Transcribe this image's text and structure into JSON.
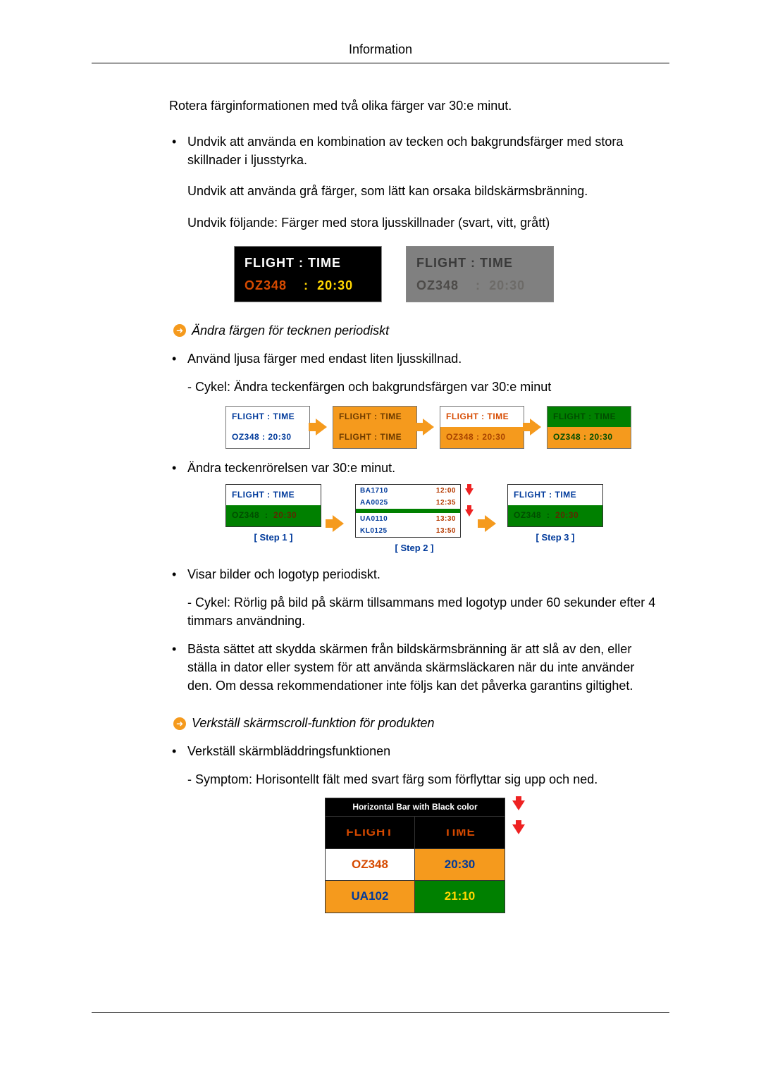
{
  "header": {
    "title": "Information"
  },
  "intro": "Rotera färginformationen med två olika färger var 30:e minut.",
  "b1": {
    "p1": "Undvik att använda en kombination av tecken och bakgrundsfärger med stora skillnader i ljusstyrka.",
    "p2": "Undvik att använda grå färger, som lätt kan orsaka bildskärmsbränning.",
    "p3": "Undvik följande: Färger med stora ljusskillnader (svart, vitt, grått)"
  },
  "fig1": {
    "left": {
      "bg": "#000000",
      "line1": "FLIGHT  :  TIME",
      "flight": "OZ348",
      "sep": ":",
      "time": "20:30"
    },
    "right": {
      "bg": "#808080",
      "line1": "FLIGHT  :  TIME",
      "flight": "OZ348",
      "sep": ":",
      "time": "20:30"
    }
  },
  "sec1": {
    "title": "Ändra färgen för tecknen periodiskt"
  },
  "b2": {
    "text": "Använd ljusa färger med endast liten ljusskillnad.",
    "sub": "- Cykel: Ändra teckenfärgen och bakgrundsfärgen var 30:e minut"
  },
  "fig2": {
    "cells": [
      {
        "r1_bg": "#ffffff",
        "r1_cls": "txt-blue",
        "r1": "FLIGHT : TIME",
        "r2_bg": "#ffffff",
        "r2_cls": "txt-blue",
        "r2": "OZ348  : 20:30"
      },
      {
        "r1_bg": "#f59a1d",
        "r1_cls": "txt-brown",
        "r1": "FLIGHT : TIME",
        "r2_bg": "#f59a1d",
        "r2_cls": "txt-brown",
        "r2": "FLIGHT : TIME"
      },
      {
        "r1_bg": "#ffffff",
        "r1_cls": "txt-orange",
        "r1": "FLIGHT : TIME",
        "r2_bg": "#f59a1d",
        "r2_cls": "txt-dkorange",
        "r2": "OZ348  : 20:30"
      },
      {
        "r1_bg": "#008000",
        "r1_cls": "txt-dkgreen",
        "r1": "FLIGHT : TIME",
        "r2_bg": "#f59a1d",
        "r2_cls": "txt-dkgreen",
        "r2": "OZ348  : 20:30"
      }
    ]
  },
  "b3": {
    "text": "Ändra teckenrörelsen var 30:e minut."
  },
  "fig3": {
    "step1": {
      "label": "[  Step 1  ]",
      "r1": "FLIGHT : TIME",
      "r2_f": "OZ348",
      "r2_t": "20:30"
    },
    "step2": {
      "label": "[  Step 2  ]",
      "rows": [
        {
          "g": false,
          "f": "BA1710",
          "t": "12:00"
        },
        {
          "g": false,
          "f": "AA0025",
          "t": "12:35"
        },
        {
          "g": true,
          "f": "",
          "t": ""
        },
        {
          "g": false,
          "f": "UA0110",
          "t": "13:30"
        },
        {
          "g": false,
          "f": "KL0125",
          "t": "13:50"
        }
      ]
    },
    "step3": {
      "label": "[  Step 3  ]",
      "r1": "FLIGHT : TIME",
      "r2_f": "OZ348",
      "r2_t": "20:30"
    }
  },
  "b4": {
    "text": "Visar bilder och logotyp periodiskt.",
    "sub": "- Cykel: Rörlig på bild på skärm tillsammans med logotyp under 60 sekunder efter 4 timmars användning."
  },
  "b5": {
    "text": "Bästa sättet att skydda skärmen från bildskärmsbränning är att slå av den, eller ställa in dator eller system för att använda skärmsläckaren när du inte använder den. Om dessa rekommendationer inte följs kan det påverka garantins giltighet."
  },
  "sec2": {
    "title": "Verkställ skärmscroll-funktion för produkten"
  },
  "b6": {
    "text": "Verkställ skärmbläddringsfunktionen",
    "sub": "- Symptom: Horisontellt fält med svart färg som förflyttar sig upp och ned."
  },
  "fig4": {
    "caption": "Horizontal Bar with Black color",
    "r1": {
      "c1": "FLIGHT",
      "c2": "TIME"
    },
    "r2": {
      "c1": "OZ348",
      "c2": "20:30"
    },
    "r3": {
      "c1": "UA102",
      "c2": "21:10"
    }
  },
  "colors": {
    "orange": "#f59a1d",
    "red": "#e22222",
    "blue": "#003a9b",
    "green": "#008000",
    "darkorange": "#d64a00",
    "yellow": "#ffd600"
  }
}
